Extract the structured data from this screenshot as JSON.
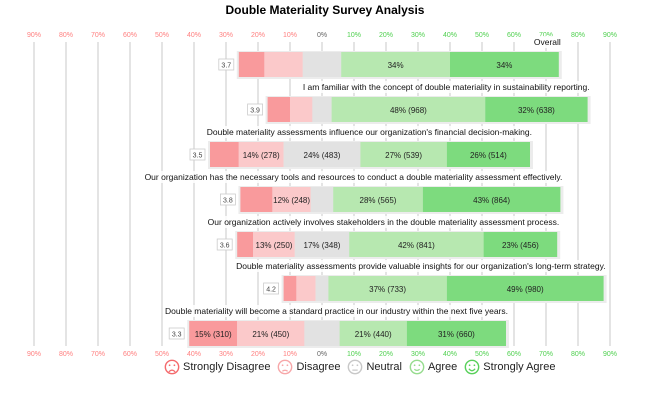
{
  "chart_data": {
    "type": "bar",
    "subtype": "diverging-stacked-likert",
    "title": "Double Materiality Survey Analysis",
    "xlim": [
      -90,
      90
    ],
    "tick_labels": [
      "90%",
      "80%",
      "70%",
      "60%",
      "50%",
      "40%",
      "30%",
      "20%",
      "10%",
      "0%",
      "10%",
      "20%",
      "30%",
      "40%",
      "50%",
      "60%",
      "70%",
      "80%",
      "90%"
    ],
    "categories": [
      "Strongly Disagree",
      "Disagree",
      "Neutral",
      "Agree",
      "Strongly Agree"
    ],
    "colors": [
      "#f99a9c",
      "#fbc9ca",
      "#e2e2e2",
      "#b7e8b0",
      "#7ddb7e"
    ],
    "legend_position": "bottom-left",
    "questions": [
      {
        "label": "Overall",
        "mean": "3.7",
        "values": [
          8,
          12,
          12,
          34,
          34
        ],
        "data_labels": [
          "",
          "",
          "",
          "34%",
          "34%"
        ]
      },
      {
        "label": "I am familiar with the concept of double materiality in sustainability reporting.",
        "mean": "3.9",
        "values": [
          7,
          7,
          6,
          48,
          32
        ],
        "data_labels": [
          "",
          "",
          "",
          "48% (968)",
          "32% (638)"
        ]
      },
      {
        "label": "Double materiality assessments influence our organization's financial decision-making.",
        "mean": "3.5",
        "values": [
          9,
          14,
          24,
          27,
          26
        ],
        "data_labels": [
          "",
          "14% (278)",
          "24% (483)",
          "27% (539)",
          "26% (514)"
        ]
      },
      {
        "label": "Our organization has the necessary tools and resources to conduct a double materiality assessment effectively.",
        "mean": "3.8",
        "values": [
          10,
          12,
          7,
          28,
          43
        ],
        "data_labels": [
          "",
          "12% (248)",
          "",
          "28% (565)",
          "43% (864)"
        ]
      },
      {
        "label": "Our organization actively involves stakeholders in the double materiality assessment process.",
        "mean": "3.6",
        "values": [
          5,
          13,
          17,
          42,
          23
        ],
        "data_labels": [
          "",
          "13% (250)",
          "17% (348)",
          "42% (841)",
          "23% (456)"
        ]
      },
      {
        "label": "Double materiality assessments provide valuable insights for our organization's long-term strategy.",
        "mean": "4.2",
        "values": [
          4,
          6,
          4,
          37,
          49
        ],
        "data_labels": [
          "",
          "",
          "",
          "37% (733)",
          "49% (980)"
        ]
      },
      {
        "label": "Double materiality will become a standard practice in our industry within the next five years.",
        "mean": "3.3",
        "values": [
          15,
          21,
          11,
          21,
          31
        ],
        "data_labels": [
          "15% (310)",
          "21% (450)",
          "",
          "21% (440)",
          "31% (660)"
        ]
      }
    ]
  },
  "legend": {
    "items": [
      {
        "label": "Strongly Disagree",
        "color": "#f46a6d",
        "face": "very-sad-face-icon"
      },
      {
        "label": "Disagree",
        "color": "#f7a7a9",
        "face": "sad-face-icon"
      },
      {
        "label": "Neutral",
        "color": "#c8c8c8",
        "face": "neutral-face-icon"
      },
      {
        "label": "Agree",
        "color": "#96dc8e",
        "face": "happy-face-icon"
      },
      {
        "label": "Strongly Agree",
        "color": "#58d05a",
        "face": "very-happy-face-icon"
      }
    ]
  }
}
